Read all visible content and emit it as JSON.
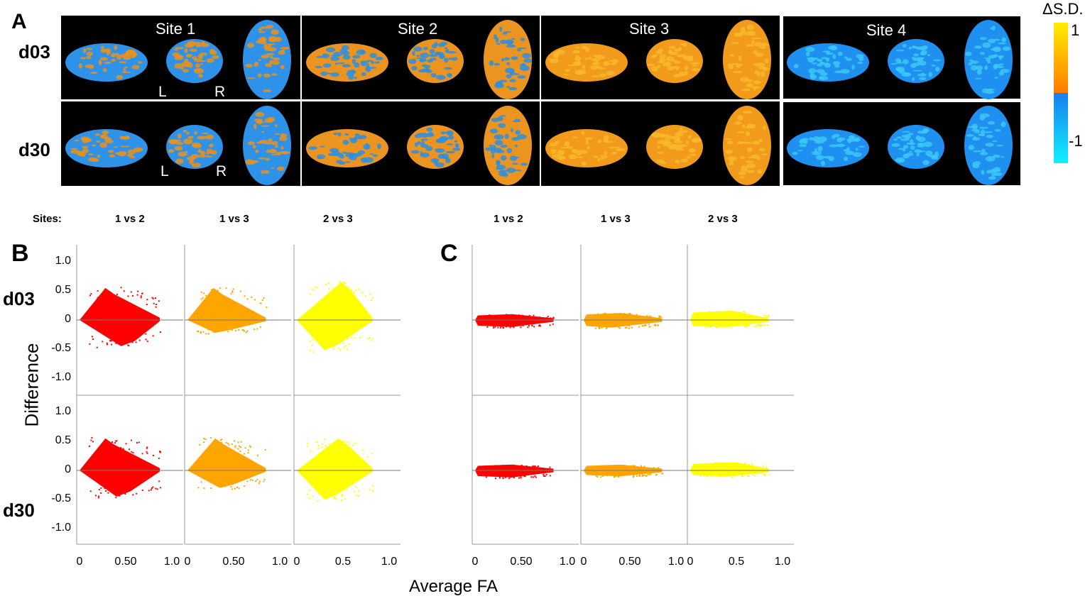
{
  "panel_a": {
    "letter": "A",
    "rows": [
      "d03",
      "d30"
    ],
    "sites": [
      {
        "label": "Site 1",
        "main": "#2e93e8",
        "patch": "#e8901e"
      },
      {
        "label": "Site 2",
        "main": "#ec9420",
        "patch": "#2e8fe0"
      },
      {
        "label": "Site 3",
        "main": "#f29a1c",
        "patch": "#f7b82a"
      },
      {
        "label": "Site 4",
        "main": "#1f8ff0",
        "patch": "#39c8f5"
      }
    ],
    "orientation_left": "L",
    "orientation_right": "R",
    "colorbar": {
      "title": "ΔS.D.",
      "max_label": "1",
      "min_label": "-1",
      "pos_top": "#ffee00",
      "pos_bottom": "#ff7a00",
      "neg_top": "#1a7ff0",
      "neg_bottom": "#10f0ff"
    }
  },
  "sites_label": "Sites:",
  "comparisons": [
    "1 vs 2",
    "1 vs 3",
    "2 vs 3"
  ],
  "panel_b": {
    "letter": "B"
  },
  "panel_c": {
    "letter": "C"
  },
  "row_labels": [
    "d03",
    "d30"
  ],
  "ylabel": "Difference",
  "xlabel": "Average FA",
  "chart_data": {
    "type": "scatter",
    "title": "",
    "xlabel": "Average FA",
    "ylabel": "Difference",
    "xlim": [
      0,
      1.0
    ],
    "ylim": [
      -1.25,
      1.25
    ],
    "yticks": [
      "1.0",
      "0.5",
      "0",
      "-0.5",
      "-1.0"
    ],
    "ytick_values": [
      1.0,
      0.5,
      0,
      -0.5,
      -1.0
    ],
    "xticks_first": [
      "0",
      "0.50",
      "1.0"
    ],
    "xticks_third": [
      "0",
      "0.5",
      "1.0"
    ],
    "series_colors": {
      "1 vs 2": "#ff0000",
      "1 vs 3": "#ffa500",
      "2 vs 3": "#ffff00"
    },
    "plots": [
      {
        "panel": "B",
        "row": "d03",
        "comparison": "1 vs 2",
        "fa_max": 0.87,
        "diff_max": 0.55,
        "fa_at_max": 0.28,
        "diff_min": -0.45,
        "fa_at_min": 0.45
      },
      {
        "panel": "B",
        "row": "d03",
        "comparison": "1 vs 3",
        "fa_max": 0.85,
        "diff_max": 0.55,
        "fa_at_max": 0.28,
        "diff_min": -0.22,
        "fa_at_min": 0.3
      },
      {
        "panel": "B",
        "row": "d03",
        "comparison": "2 vs 3",
        "fa_max": 0.82,
        "diff_max": 0.65,
        "fa_at_max": 0.48,
        "diff_min": -0.52,
        "fa_at_min": 0.3
      },
      {
        "panel": "B",
        "row": "d30",
        "comparison": "1 vs 2",
        "fa_max": 0.87,
        "diff_max": 0.55,
        "fa_at_max": 0.28,
        "diff_min": -0.45,
        "fa_at_min": 0.4
      },
      {
        "panel": "B",
        "row": "d30",
        "comparison": "1 vs 3",
        "fa_max": 0.85,
        "diff_max": 0.55,
        "fa_at_max": 0.3,
        "diff_min": -0.3,
        "fa_at_min": 0.35
      },
      {
        "panel": "B",
        "row": "d30",
        "comparison": "2 vs 3",
        "fa_max": 0.82,
        "diff_max": 0.55,
        "fa_at_max": 0.45,
        "diff_min": -0.5,
        "fa_at_min": 0.3
      },
      {
        "panel": "C",
        "row": "d03",
        "comparison": "1 vs 2",
        "fa_max": 0.85,
        "diff_max": 0.1,
        "fa_at_max": 0.4,
        "diff_min": -0.12,
        "fa_at_min": 0.4
      },
      {
        "panel": "C",
        "row": "d03",
        "comparison": "1 vs 3",
        "fa_max": 0.85,
        "diff_max": 0.12,
        "fa_at_max": 0.4,
        "diff_min": -0.13,
        "fa_at_min": 0.3
      },
      {
        "panel": "C",
        "row": "d03",
        "comparison": "2 vs 3",
        "fa_max": 0.85,
        "diff_max": 0.16,
        "fa_at_max": 0.45,
        "diff_min": -0.12,
        "fa_at_min": 0.4
      },
      {
        "panel": "C",
        "row": "d30",
        "comparison": "1 vs 2",
        "fa_max": 0.85,
        "diff_max": 0.1,
        "fa_at_max": 0.4,
        "diff_min": -0.12,
        "fa_at_min": 0.4
      },
      {
        "panel": "C",
        "row": "d30",
        "comparison": "1 vs 3",
        "fa_max": 0.85,
        "diff_max": 0.1,
        "fa_at_max": 0.4,
        "diff_min": -0.1,
        "fa_at_min": 0.4
      },
      {
        "panel": "C",
        "row": "d30",
        "comparison": "2 vs 3",
        "fa_max": 0.85,
        "diff_max": 0.14,
        "fa_at_max": 0.5,
        "diff_min": -0.1,
        "fa_at_min": 0.4
      }
    ]
  }
}
